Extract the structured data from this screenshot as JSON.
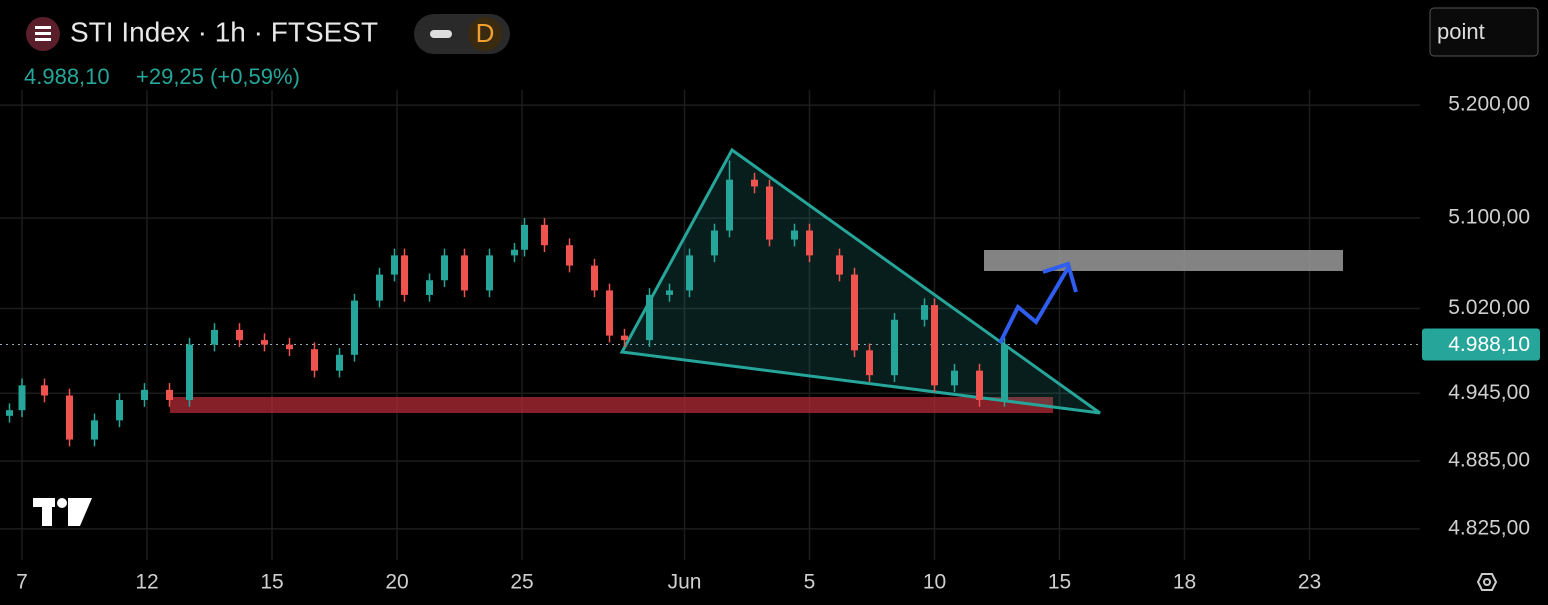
{
  "header": {
    "title": "STI Index · 1h · FTSEST",
    "badge": "D",
    "price": "4.988,10",
    "change": "+29,25 (+0,59%)",
    "button": "point"
  },
  "chart_data": {
    "type": "candlestick",
    "x": [
      -0.5,
      0,
      0.9,
      1.9,
      2.9,
      3.9,
      4.9,
      5.9,
      6.7,
      7.7,
      8.7,
      9.7,
      10.7,
      11.7,
      12.7,
      13.3,
      14.3,
      14.9,
      15.3,
      16.3,
      16.9,
      17.7,
      18.7,
      19.7,
      20.1,
      20.9,
      21.9,
      22.9,
      23.5,
      24.1,
      25.1,
      25.9,
      26.7,
      27.7,
      28.3,
      29.3,
      29.9,
      30.9,
      31.5,
      32.7,
      33.3,
      33.9,
      34.9,
      36.1,
      36.5,
      37.3,
      38.3,
      39.3
    ],
    "open": [
      4925,
      4930,
      4952,
      4943,
      4904,
      4921,
      4939,
      4948,
      4939,
      4988,
      5001,
      4992,
      4988,
      4984,
      4965,
      4979,
      5027,
      5050,
      5067,
      5032,
      5045,
      5067,
      5036,
      5067,
      5072,
      5094,
      5076,
      5058,
      5036,
      4996,
      4992,
      5032,
      5036,
      5067,
      5089,
      5134,
      5128,
      5081,
      5089,
      5067,
      5050,
      4983,
      4961,
      5010,
      5023,
      4952,
      4965,
      4939
    ],
    "high": [
      4936,
      4958,
      4958,
      4949,
      4927,
      4945,
      4954,
      4954,
      4994,
      5007,
      5007,
      4998,
      4994,
      4990,
      4985,
      5033,
      5056,
      5073,
      5073,
      5051,
      5073,
      5073,
      5073,
      5078,
      5100,
      5100,
      5082,
      5064,
      5042,
      5002,
      5038,
      5042,
      5073,
      5095,
      5151,
      5140,
      5134,
      5095,
      5095,
      5073,
      5056,
      4989,
      5016,
      5029,
      5029,
      4971,
      4971,
      4994
    ],
    "low": [
      4919,
      4924,
      4937,
      4898,
      4898,
      4915,
      4933,
      4933,
      4933,
      4982,
      4986,
      4982,
      4978,
      4959,
      4959,
      4973,
      5021,
      5044,
      5026,
      5026,
      5039,
      5030,
      5030,
      5061,
      5066,
      5070,
      5052,
      5030,
      4990,
      4986,
      4986,
      5026,
      5030,
      5061,
      5083,
      5122,
      5075,
      5075,
      5061,
      5044,
      4977,
      4955,
      4955,
      5004,
      4946,
      4946,
      4933,
      4933
    ],
    "close": [
      4930,
      4952,
      4943,
      4904,
      4921,
      4939,
      4948,
      4939,
      4988,
      5001,
      4992,
      4988,
      4984,
      4965,
      4979,
      5027,
      5050,
      5067,
      5032,
      5045,
      5067,
      5036,
      5067,
      5072,
      5094,
      5076,
      5058,
      5036,
      4996,
      4992,
      5032,
      5036,
      5067,
      5089,
      5134,
      5128,
      5081,
      5089,
      5067,
      5050,
      4983,
      4961,
      5010,
      5023,
      4952,
      4965,
      4939,
      4988.1
    ],
    "up_color": "#26a69a",
    "down_color": "#ef5350",
    "last_price": {
      "value": 4988.1,
      "label": "4.988,10"
    },
    "xlim": [
      -0.88,
      55.92
    ],
    "xticks": [
      {
        "value": 0,
        "label": "7"
      },
      {
        "value": 5,
        "label": "12"
      },
      {
        "value": 10,
        "label": "15"
      },
      {
        "value": 15,
        "label": "20"
      },
      {
        "value": 20,
        "label": "25"
      },
      {
        "value": 26.5,
        "label": "Jun"
      },
      {
        "value": 31.5,
        "label": "5"
      },
      {
        "value": 36.5,
        "label": "10"
      },
      {
        "value": 41.5,
        "label": "15"
      },
      {
        "value": 46.5,
        "label": "18"
      },
      {
        "value": 51.5,
        "label": "23"
      }
    ],
    "ylim": [
      4793,
      5293
    ],
    "yticks": [
      {
        "value": 4825,
        "label": "4.825,00"
      },
      {
        "value": 4885,
        "label": "4.885,00"
      },
      {
        "value": 4945,
        "label": "4.945,00"
      },
      {
        "value": 5020,
        "label": "5.020,00"
      },
      {
        "value": 5100,
        "label": "5.100,00"
      },
      {
        "value": 5200,
        "label": "5.200,00"
      }
    ],
    "grid": true
  }
}
